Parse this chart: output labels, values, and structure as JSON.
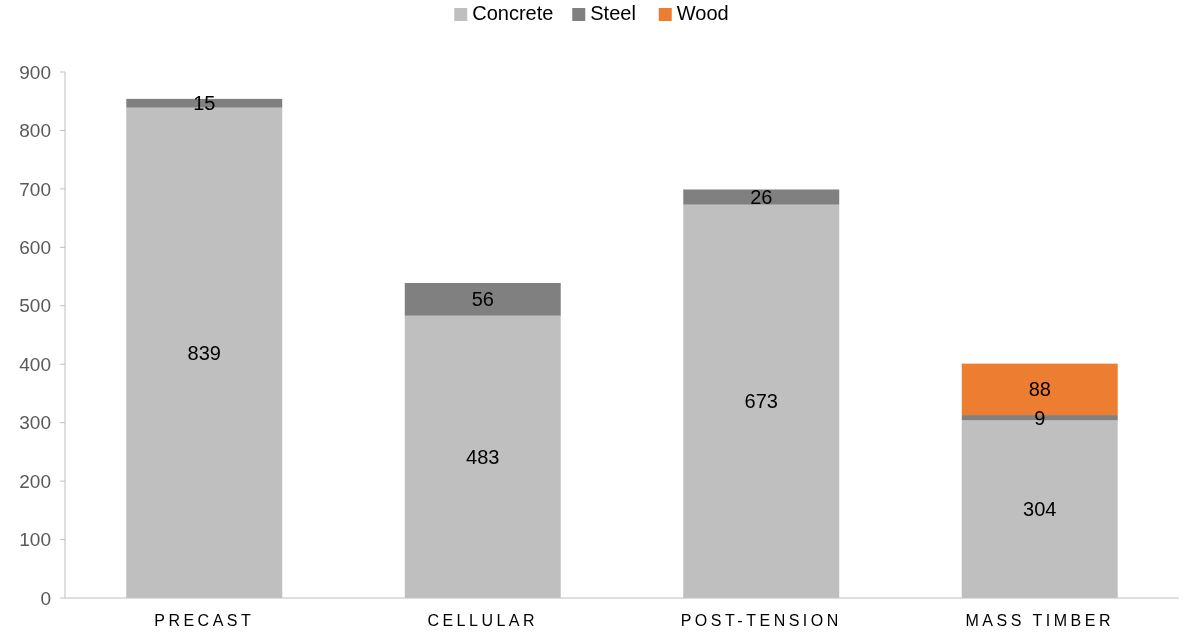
{
  "chart_data": {
    "type": "bar",
    "stacked": true,
    "categories": [
      "PRECAST",
      "CELLULAR",
      "POST-TENSION",
      "MASS TIMBER"
    ],
    "series": [
      {
        "name": "Concrete",
        "color": "#bfbfbf",
        "values": [
          839,
          483,
          673,
          304
        ]
      },
      {
        "name": "Steel",
        "color": "#808080",
        "values": [
          15,
          56,
          26,
          9
        ]
      },
      {
        "name": "Wood",
        "color": "#ed7d31",
        "values": [
          null,
          null,
          null,
          88
        ]
      }
    ],
    "ylim": [
      0,
      900
    ],
    "yticks": [
      0,
      100,
      200,
      300,
      400,
      500,
      600,
      700,
      800,
      900
    ],
    "data_labels": true,
    "legend": "top",
    "grid": false
  }
}
